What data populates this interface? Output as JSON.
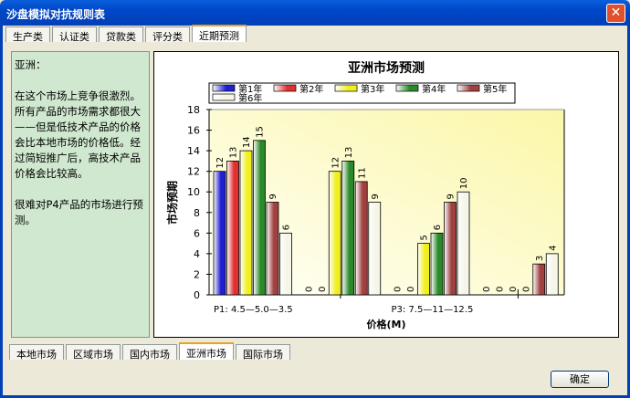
{
  "window": {
    "title": "沙盘模拟对抗规则表",
    "close": "✕"
  },
  "top_tabs": [
    {
      "label": "生产类"
    },
    {
      "label": "认证类"
    },
    {
      "label": "贷款类"
    },
    {
      "label": "评分类"
    },
    {
      "label": "近期预测",
      "selected": true
    }
  ],
  "bottom_tabs": [
    {
      "label": "本地市场"
    },
    {
      "label": "区域市场"
    },
    {
      "label": "国内市场"
    },
    {
      "label": "亚洲市场",
      "selected": true
    },
    {
      "label": "国际市场"
    }
  ],
  "description": {
    "heading": "亚洲：",
    "para1": "在这个市场上竞争很激烈。所有产品的市场需求都很大——但是低技术产品的价格会比本地市场的价格低。经过简短推广后，高技术产品价格会比较高。",
    "para2": "很难对P4产品的市场进行预测。"
  },
  "ok_button": "确定",
  "chart_data": {
    "type": "bar",
    "title": "亚洲市场预测",
    "xlabel": "价格(M)",
    "ylabel": "市场预期",
    "ylim": [
      0,
      18
    ],
    "yticks": [
      0,
      2,
      4,
      6,
      8,
      10,
      12,
      14,
      16,
      18
    ],
    "categories": [
      "P1: 4.5—5.0—3.5",
      "",
      "P3: 7.5—11—12.5",
      ""
    ],
    "legend_position": "top",
    "series": [
      {
        "name": "第1年",
        "color": "#2020d0",
        "values": [
          12,
          0,
          0,
          0
        ]
      },
      {
        "name": "第2年",
        "color": "#e03030",
        "values": [
          13,
          0,
          0,
          0
        ]
      },
      {
        "name": "第3年",
        "color": "#f0f020",
        "values": [
          14,
          12,
          5,
          0
        ]
      },
      {
        "name": "第4年",
        "color": "#2a8a2a",
        "values": [
          15,
          13,
          6,
          0
        ]
      },
      {
        "name": "第5年",
        "color": "#a04040",
        "values": [
          9,
          11,
          9,
          3
        ]
      },
      {
        "name": "第6年",
        "color": "#f5f5e8",
        "values": [
          6,
          9,
          10,
          4
        ]
      }
    ]
  }
}
